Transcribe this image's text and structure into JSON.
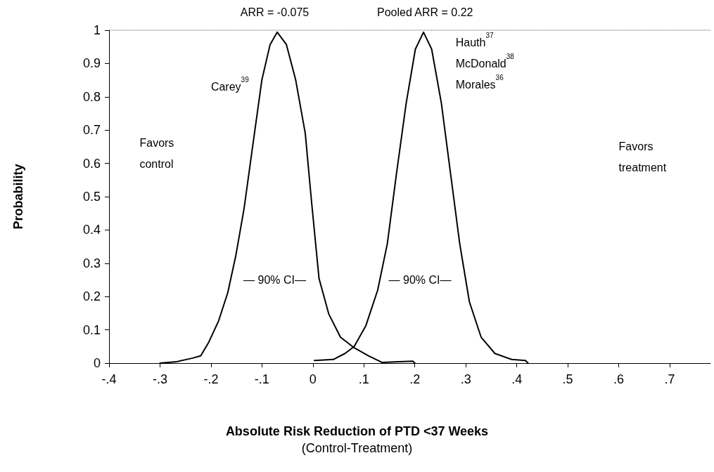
{
  "chart_data": {
    "type": "line",
    "xlabel": "Absolute Risk Reduction of PTD <37 Weeks\n(Control-Treatment)",
    "ylabel": "Probability",
    "series": [
      {
        "color": "#000000",
        "x": [
          -0.3,
          -0.268,
          -0.236,
          -0.22,
          -0.204,
          -0.185,
          -0.167,
          -0.151,
          -0.135,
          -0.116,
          -0.1,
          -0.084,
          -0.07,
          -0.052,
          -0.034,
          -0.015,
          -0.003,
          0.012,
          0.031,
          0.054,
          0.081,
          0.109,
          0.136,
          0.168,
          0.196,
          0.2
        ],
        "values": [
          0.0,
          0.004,
          0.015,
          0.022,
          0.064,
          0.127,
          0.212,
          0.325,
          0.465,
          0.676,
          0.852,
          0.957,
          0.994,
          0.957,
          0.852,
          0.69,
          0.49,
          0.254,
          0.148,
          0.078,
          0.046,
          0.022,
          0.002,
          0.004,
          0.006,
          0.0
        ]
      },
      {
        "color": "#000000",
        "x": [
          0.003,
          0.04,
          0.063,
          0.081,
          0.104,
          0.127,
          0.146,
          0.164,
          0.183,
          0.201,
          0.217,
          0.233,
          0.252,
          0.27,
          0.288,
          0.307,
          0.33,
          0.357,
          0.39,
          0.417,
          0.422
        ],
        "values": [
          0.008,
          0.011,
          0.029,
          0.05,
          0.113,
          0.219,
          0.359,
          0.57,
          0.781,
          0.943,
          0.994,
          0.943,
          0.781,
          0.57,
          0.359,
          0.184,
          0.078,
          0.029,
          0.011,
          0.008,
          0.0
        ]
      }
    ],
    "xlim": [
      -0.4,
      0.78
    ],
    "xticks": [
      {
        "value": -0.4,
        "label": "-.4"
      },
      {
        "value": -0.3,
        "label": "-.3"
      },
      {
        "value": -0.2,
        "label": "-.2"
      },
      {
        "value": -0.1,
        "label": "-.1"
      },
      0,
      {
        "value": 0.1,
        "label": ".1"
      },
      {
        "value": 0.2,
        "label": ".2"
      },
      {
        "value": 0.3,
        "label": ".3"
      },
      {
        "value": 0.4,
        "label": ".4"
      },
      {
        "value": 0.5,
        "label": ".5"
      },
      {
        "value": 0.6,
        "label": ".6"
      },
      {
        "value": 0.7,
        "label": ".7"
      }
    ],
    "ylim": [
      0,
      1
    ],
    "yticks": [
      0,
      0.1,
      0.2,
      0.3,
      0.4,
      0.5,
      0.6,
      0.7,
      0.8,
      0.9,
      1
    ],
    "annotations": [
      {
        "text": "ARR = -0.075",
        "x": -0.075,
        "y": 1
      },
      {
        "text": "Pooled ARR = 0.22",
        "x": 0.22,
        "y": 1
      },
      "— 90% CI—",
      "— 90% CI—",
      "Carey$^{39}$",
      "Hauth$^{37}$\nMcDonald$^{38}$\nMorales$^{36}$",
      "Favors\ncontrol",
      "Favors\ntreatment"
    ],
    "marker": "none",
    "line_style": "solid",
    "grid": false
  }
}
